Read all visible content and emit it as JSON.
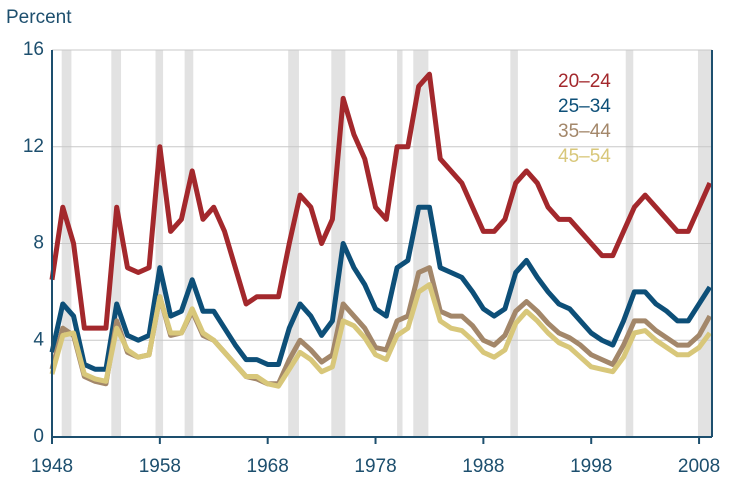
{
  "chart_data": {
    "type": "line",
    "ylabel": "Percent",
    "x": [
      1948,
      1949,
      1950,
      1951,
      1952,
      1953,
      1954,
      1955,
      1956,
      1957,
      1958,
      1959,
      1960,
      1961,
      1962,
      1963,
      1964,
      1965,
      1966,
      1967,
      1968,
      1969,
      1970,
      1971,
      1972,
      1973,
      1974,
      1975,
      1976,
      1977,
      1978,
      1979,
      1980,
      1981,
      1982,
      1983,
      1984,
      1985,
      1986,
      1987,
      1988,
      1989,
      1990,
      1991,
      1992,
      1993,
      1994,
      1995,
      1996,
      1997,
      1998,
      1999,
      2000,
      2001,
      2002,
      2003,
      2004,
      2005,
      2006,
      2007,
      2008,
      2009
    ],
    "series": [
      {
        "name": "20–24",
        "color": "#a3282c",
        "values": [
          6.5,
          9.5,
          8,
          4.5,
          4.5,
          4.5,
          9.5,
          7,
          6.8,
          7,
          12,
          8.5,
          9,
          11,
          9,
          9.5,
          8.5,
          7,
          5.5,
          5.8,
          5.8,
          5.8,
          8,
          10,
          9.5,
          8,
          9,
          14,
          12.5,
          11.5,
          9.5,
          9,
          12,
          12,
          14.5,
          15,
          11.5,
          11,
          10.5,
          9.5,
          8.5,
          8.5,
          9,
          10.5,
          11,
          10.5,
          9.5,
          9,
          9,
          8.5,
          8,
          7.5,
          7.5,
          8.5,
          9.5,
          10,
          9.5,
          9,
          8.5,
          8.5,
          9.5,
          10.5
        ]
      },
      {
        "name": "25–34",
        "color": "#0d4f78",
        "values": [
          3.5,
          5.5,
          5,
          3,
          2.8,
          2.8,
          5.5,
          4.2,
          4,
          4.2,
          7,
          5,
          5.2,
          6.5,
          5.2,
          5.2,
          4.5,
          3.8,
          3.2,
          3.2,
          3,
          3,
          4.5,
          5.5,
          5,
          4.2,
          4.8,
          8,
          7,
          6.3,
          5.3,
          5,
          7,
          7.3,
          9.5,
          9.5,
          7,
          6.8,
          6.6,
          6,
          5.3,
          5,
          5.3,
          6.8,
          7.3,
          6.6,
          6,
          5.5,
          5.3,
          4.8,
          4.3,
          4,
          3.8,
          4.8,
          6,
          6,
          5.5,
          5.2,
          4.8,
          4.8,
          5.5,
          6.2
        ]
      },
      {
        "name": "35–44",
        "color": "#a3876a",
        "values": [
          2.8,
          4.5,
          4.2,
          2.5,
          2.3,
          2.2,
          4.8,
          3.5,
          3.3,
          3.4,
          5.8,
          4.2,
          4.3,
          5.2,
          4.2,
          4,
          3.5,
          3,
          2.5,
          2.4,
          2.2,
          2.2,
          3.2,
          4,
          3.6,
          3.1,
          3.4,
          5.5,
          5,
          4.5,
          3.7,
          3.6,
          4.8,
          5,
          6.8,
          7,
          5.2,
          5,
          5,
          4.6,
          4,
          3.8,
          4.2,
          5.2,
          5.6,
          5.2,
          4.7,
          4.3,
          4.1,
          3.8,
          3.4,
          3.2,
          3,
          3.8,
          4.8,
          4.8,
          4.4,
          4.1,
          3.8,
          3.8,
          4.2,
          5
        ]
      },
      {
        "name": "45–54",
        "color": "#d8c77a",
        "values": [
          2.6,
          4.2,
          4.3,
          2.6,
          2.4,
          2.3,
          4.5,
          3.6,
          3.3,
          3.4,
          5.8,
          4.3,
          4.3,
          5.3,
          4.3,
          4,
          3.5,
          3,
          2.5,
          2.5,
          2.2,
          2.1,
          2.8,
          3.5,
          3.2,
          2.7,
          2.9,
          4.8,
          4.6,
          4.1,
          3.4,
          3.2,
          4.2,
          4.5,
          6,
          6.3,
          4.8,
          4.5,
          4.4,
          4,
          3.5,
          3.3,
          3.6,
          4.7,
          5.2,
          4.8,
          4.3,
          3.9,
          3.7,
          3.3,
          2.9,
          2.8,
          2.7,
          3.3,
          4.3,
          4.4,
          4,
          3.7,
          3.4,
          3.4,
          3.7,
          4.3
        ]
      }
    ],
    "recessions": [
      [
        1948.9,
        1949.8
      ],
      [
        1953.5,
        1954.4
      ],
      [
        1957.6,
        1958.3
      ],
      [
        1960.3,
        1961.1
      ],
      [
        1969.9,
        1970.9
      ],
      [
        1973.9,
        1975.2
      ],
      [
        1980,
        1980.5
      ],
      [
        1981.5,
        1982.9
      ],
      [
        1990.5,
        1991.2
      ],
      [
        2001.2,
        2001.9
      ],
      [
        2007.9,
        2009.2
      ]
    ],
    "recession_color": "#e2e2e2",
    "xlim": [
      1948,
      2009.2
    ],
    "xticks": [
      1948,
      1958,
      1968,
      1978,
      1988,
      1998,
      2008
    ],
    "ylim": [
      0,
      16
    ],
    "yticks": [
      0,
      4,
      8,
      12,
      16
    ],
    "grid": true
  }
}
